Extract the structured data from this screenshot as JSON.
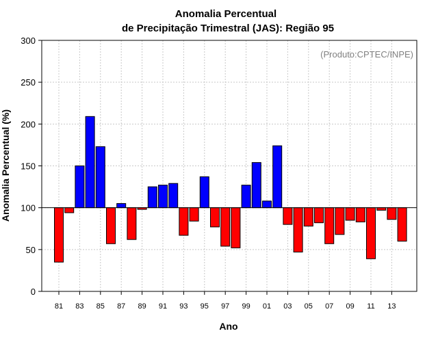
{
  "chart_data": {
    "type": "bar",
    "title_line1": "Anomalia Percentual",
    "title_line2": "de Precipitação Trimestral (JAS): Região 95",
    "xlabel": "Ano",
    "ylabel": "Anomalia Percentual (%)",
    "credit": "(Produto:CPTEC/INPE)",
    "ylim": [
      0,
      300
    ],
    "yticks": [
      "0",
      "50",
      "100",
      "150",
      "200",
      "250",
      "300"
    ],
    "baseline": 100,
    "grid": true,
    "categories": [
      "81",
      "82",
      "83",
      "84",
      "85",
      "86",
      "87",
      "88",
      "89",
      "90",
      "91",
      "92",
      "93",
      "94",
      "95",
      "96",
      "97",
      "98",
      "99",
      "00",
      "01",
      "02",
      "03",
      "04",
      "05",
      "06",
      "07",
      "08",
      "09",
      "10",
      "11",
      "12",
      "13",
      "14"
    ],
    "xtick_labels": [
      "81",
      "83",
      "85",
      "87",
      "89",
      "91",
      "93",
      "95",
      "97",
      "99",
      "01",
      "03",
      "05",
      "07",
      "09",
      "11",
      "13"
    ],
    "values": [
      35,
      94,
      150,
      209,
      173,
      57,
      105,
      62,
      98,
      125,
      127,
      129,
      67,
      84,
      137,
      77,
      54,
      52,
      127,
      154,
      108,
      174,
      80,
      47,
      78,
      82,
      57,
      68,
      85,
      83,
      39,
      97,
      86,
      60
    ],
    "colors": {
      "above": "#0000ff",
      "below": "#ff0000"
    }
  }
}
